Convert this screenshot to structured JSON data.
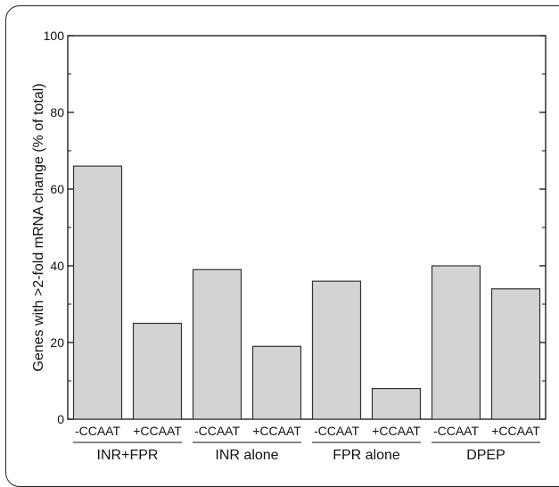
{
  "chart_data": {
    "type": "bar",
    "title": "",
    "xlabel": "",
    "ylabel": "Genes with >2-fold mRNA change (% of total)",
    "ylim": [
      0,
      100
    ],
    "yticks": [
      "0",
      "20",
      "40",
      "60",
      "80",
      "100"
    ],
    "categories": [
      "-CCAAT",
      "+CCAAT",
      "-CCAAT",
      "+CCAAT",
      "-CCAAT",
      "+CCAAT",
      "-CCAAT",
      "+CCAAT"
    ],
    "values": [
      66,
      25,
      39,
      19,
      36,
      8,
      40,
      34
    ],
    "groups": [
      "INR+FPR",
      "INR alone",
      "FPR alone",
      "DPEP"
    ],
    "bar_color": "#d3d3d3",
    "grid": false
  }
}
